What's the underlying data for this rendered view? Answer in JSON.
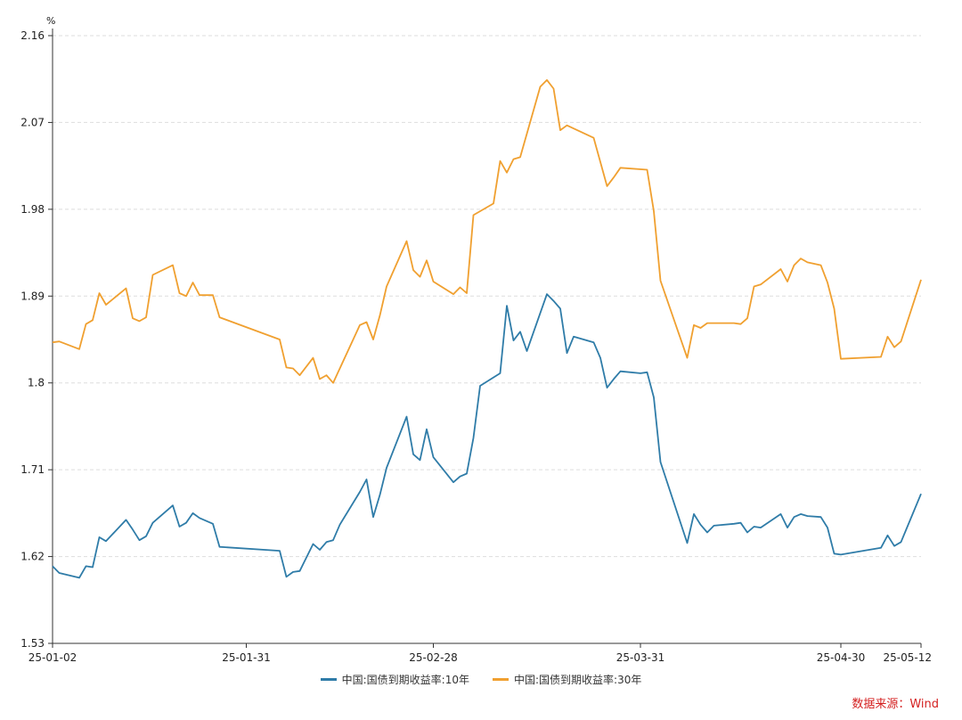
{
  "chart_data": {
    "type": "line",
    "unit": "%",
    "ylim": [
      1.53,
      2.16
    ],
    "yticks": [
      "1.53",
      "1.62",
      "1.71",
      "1.8",
      "1.89",
      "1.98",
      "2.07",
      "2.16"
    ],
    "xlim": [
      "2025-01-02",
      "2025-05-12"
    ],
    "xticks": [
      {
        "date": "2025-01-02",
        "label": "25-01-02"
      },
      {
        "date": "2025-01-31",
        "label": "25-01-31"
      },
      {
        "date": "2025-02-28",
        "label": "25-02-28"
      },
      {
        "date": "2025-03-31",
        "label": "25-03-31"
      },
      {
        "date": "2025-04-30",
        "label": "25-04-30"
      },
      {
        "date": "2025-05-12",
        "label": "25-05-12"
      }
    ],
    "grid": true,
    "legend": "bottom",
    "series": [
      {
        "name": "中国:国债到期收益率:10年",
        "color": "#2f7ca8",
        "points": [
          [
            "2025-01-02",
            1.61
          ],
          [
            "2025-01-03",
            1.603
          ],
          [
            "2025-01-06",
            1.598
          ],
          [
            "2025-01-07",
            1.61
          ],
          [
            "2025-01-08",
            1.609
          ],
          [
            "2025-01-09",
            1.64
          ],
          [
            "2025-01-10",
            1.636
          ],
          [
            "2025-01-13",
            1.658
          ],
          [
            "2025-01-14",
            1.648
          ],
          [
            "2025-01-15",
            1.637
          ],
          [
            "2025-01-16",
            1.641
          ],
          [
            "2025-01-17",
            1.655
          ],
          [
            "2025-01-20",
            1.673
          ],
          [
            "2025-01-21",
            1.651
          ],
          [
            "2025-01-22",
            1.655
          ],
          [
            "2025-01-23",
            1.665
          ],
          [
            "2025-01-24",
            1.66
          ],
          [
            "2025-01-26",
            1.654
          ],
          [
            "2025-01-27",
            1.63
          ],
          [
            "2025-02-05",
            1.626
          ],
          [
            "2025-02-06",
            1.599
          ],
          [
            "2025-02-07",
            1.604
          ],
          [
            "2025-02-08",
            1.605
          ],
          [
            "2025-02-10",
            1.633
          ],
          [
            "2025-02-11",
            1.627
          ],
          [
            "2025-02-12",
            1.635
          ],
          [
            "2025-02-13",
            1.637
          ],
          [
            "2025-02-14",
            1.653
          ],
          [
            "2025-02-17",
            1.687
          ],
          [
            "2025-02-18",
            1.7
          ],
          [
            "2025-02-19",
            1.661
          ],
          [
            "2025-02-20",
            1.684
          ],
          [
            "2025-02-21",
            1.712
          ],
          [
            "2025-02-24",
            1.765
          ],
          [
            "2025-02-25",
            1.726
          ],
          [
            "2025-02-26",
            1.72
          ],
          [
            "2025-02-27",
            1.752
          ],
          [
            "2025-02-28",
            1.723
          ],
          [
            "2025-03-03",
            1.697
          ],
          [
            "2025-03-04",
            1.703
          ],
          [
            "2025-03-05",
            1.706
          ],
          [
            "2025-03-06",
            1.743
          ],
          [
            "2025-03-07",
            1.797
          ],
          [
            "2025-03-10",
            1.81
          ],
          [
            "2025-03-11",
            1.88
          ],
          [
            "2025-03-12",
            1.844
          ],
          [
            "2025-03-13",
            1.853
          ],
          [
            "2025-03-14",
            1.833
          ],
          [
            "2025-03-17",
            1.892
          ],
          [
            "2025-03-18",
            1.885
          ],
          [
            "2025-03-19",
            1.877
          ],
          [
            "2025-03-20",
            1.831
          ],
          [
            "2025-03-21",
            1.848
          ],
          [
            "2025-03-24",
            1.842
          ],
          [
            "2025-03-25",
            1.826
          ],
          [
            "2025-03-26",
            1.795
          ],
          [
            "2025-03-27",
            1.804
          ],
          [
            "2025-03-28",
            1.812
          ],
          [
            "2025-03-31",
            1.81
          ],
          [
            "2025-04-01",
            1.811
          ],
          [
            "2025-04-02",
            1.785
          ],
          [
            "2025-04-03",
            1.718
          ],
          [
            "2025-04-07",
            1.634
          ],
          [
            "2025-04-08",
            1.664
          ],
          [
            "2025-04-09",
            1.653
          ],
          [
            "2025-04-10",
            1.645
          ],
          [
            "2025-04-11",
            1.652
          ],
          [
            "2025-04-14",
            1.654
          ],
          [
            "2025-04-15",
            1.655
          ],
          [
            "2025-04-16",
            1.645
          ],
          [
            "2025-04-17",
            1.651
          ],
          [
            "2025-04-18",
            1.65
          ],
          [
            "2025-04-21",
            1.664
          ],
          [
            "2025-04-22",
            1.65
          ],
          [
            "2025-04-23",
            1.661
          ],
          [
            "2025-04-24",
            1.664
          ],
          [
            "2025-04-25",
            1.662
          ],
          [
            "2025-04-27",
            1.661
          ],
          [
            "2025-04-28",
            1.65
          ],
          [
            "2025-04-29",
            1.623
          ],
          [
            "2025-04-30",
            1.622
          ],
          [
            "2025-05-06",
            1.629
          ],
          [
            "2025-05-07",
            1.642
          ],
          [
            "2025-05-08",
            1.631
          ],
          [
            "2025-05-09",
            1.635
          ],
          [
            "2025-05-12",
            1.685
          ]
        ]
      },
      {
        "name": "中国:国债到期收益率:30年",
        "color": "#f0a030",
        "points": [
          [
            "2025-01-02",
            1.842
          ],
          [
            "2025-01-03",
            1.843
          ],
          [
            "2025-01-06",
            1.835
          ],
          [
            "2025-01-07",
            1.861
          ],
          [
            "2025-01-08",
            1.865
          ],
          [
            "2025-01-09",
            1.893
          ],
          [
            "2025-01-10",
            1.881
          ],
          [
            "2025-01-13",
            1.898
          ],
          [
            "2025-01-14",
            1.867
          ],
          [
            "2025-01-15",
            1.864
          ],
          [
            "2025-01-16",
            1.868
          ],
          [
            "2025-01-17",
            1.912
          ],
          [
            "2025-01-20",
            1.922
          ],
          [
            "2025-01-21",
            1.893
          ],
          [
            "2025-01-22",
            1.89
          ],
          [
            "2025-01-23",
            1.904
          ],
          [
            "2025-01-24",
            1.891
          ],
          [
            "2025-01-26",
            1.891
          ],
          [
            "2025-01-27",
            1.868
          ],
          [
            "2025-02-05",
            1.845
          ],
          [
            "2025-02-06",
            1.816
          ],
          [
            "2025-02-07",
            1.815
          ],
          [
            "2025-02-08",
            1.808
          ],
          [
            "2025-02-10",
            1.826
          ],
          [
            "2025-02-11",
            1.804
          ],
          [
            "2025-02-12",
            1.808
          ],
          [
            "2025-02-13",
            1.8
          ],
          [
            "2025-02-17",
            1.86
          ],
          [
            "2025-02-18",
            1.863
          ],
          [
            "2025-02-19",
            1.845
          ],
          [
            "2025-02-20",
            1.87
          ],
          [
            "2025-02-21",
            1.9
          ],
          [
            "2025-02-24",
            1.947
          ],
          [
            "2025-02-25",
            1.917
          ],
          [
            "2025-02-26",
            1.91
          ],
          [
            "2025-02-27",
            1.927
          ],
          [
            "2025-02-28",
            1.905
          ],
          [
            "2025-03-03",
            1.892
          ],
          [
            "2025-03-04",
            1.899
          ],
          [
            "2025-03-05",
            1.893
          ],
          [
            "2025-03-06",
            1.974
          ],
          [
            "2025-03-09",
            1.986
          ],
          [
            "2025-03-10",
            2.03
          ],
          [
            "2025-03-11",
            2.018
          ],
          [
            "2025-03-12",
            2.032
          ],
          [
            "2025-03-13",
            2.034
          ],
          [
            "2025-03-16",
            2.107
          ],
          [
            "2025-03-17",
            2.114
          ],
          [
            "2025-03-18",
            2.105
          ],
          [
            "2025-03-19",
            2.062
          ],
          [
            "2025-03-20",
            2.067
          ],
          [
            "2025-03-24",
            2.054
          ],
          [
            "2025-03-26",
            2.004
          ],
          [
            "2025-03-27",
            2.013
          ],
          [
            "2025-03-28",
            2.023
          ],
          [
            "2025-04-01",
            2.021
          ],
          [
            "2025-04-02",
            1.978
          ],
          [
            "2025-04-03",
            1.906
          ],
          [
            "2025-04-07",
            1.826
          ],
          [
            "2025-04-08",
            1.86
          ],
          [
            "2025-04-09",
            1.857
          ],
          [
            "2025-04-10",
            1.862
          ],
          [
            "2025-04-14",
            1.862
          ],
          [
            "2025-04-15",
            1.861
          ],
          [
            "2025-04-16",
            1.867
          ],
          [
            "2025-04-17",
            1.9
          ],
          [
            "2025-04-18",
            1.902
          ],
          [
            "2025-04-21",
            1.918
          ],
          [
            "2025-04-22",
            1.905
          ],
          [
            "2025-04-23",
            1.922
          ],
          [
            "2025-04-24",
            1.929
          ],
          [
            "2025-04-25",
            1.925
          ],
          [
            "2025-04-27",
            1.922
          ],
          [
            "2025-04-28",
            1.904
          ],
          [
            "2025-04-29",
            1.877
          ],
          [
            "2025-04-30",
            1.825
          ],
          [
            "2025-05-06",
            1.827
          ],
          [
            "2025-05-07",
            1.848
          ],
          [
            "2025-05-08",
            1.837
          ],
          [
            "2025-05-09",
            1.843
          ],
          [
            "2025-05-12",
            1.907
          ]
        ]
      }
    ]
  },
  "source_text": "数据来源：Wind"
}
